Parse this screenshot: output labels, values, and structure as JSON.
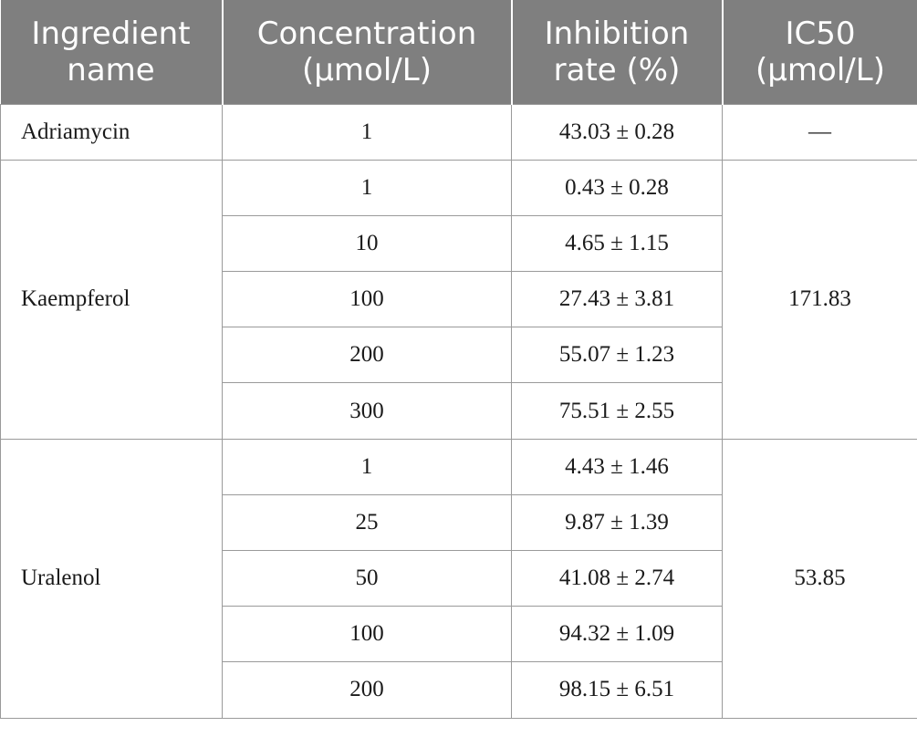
{
  "header": {
    "col1": [
      "Ingredient",
      "name"
    ],
    "col2": [
      "Concentration",
      "(μmol/L)"
    ],
    "col3": [
      "Inhibition",
      "rate (%)"
    ],
    "col4": [
      "IC50",
      "(μmol/L)"
    ]
  },
  "groups": [
    {
      "name": "Adriamycin",
      "ic50": "—",
      "rows": [
        {
          "concentration": "1",
          "inhibition": "43.03 ± 0.28"
        }
      ]
    },
    {
      "name": "Kaempferol",
      "ic50": "171.83",
      "rows": [
        {
          "concentration": "1",
          "inhibition": "0.43 ± 0.28"
        },
        {
          "concentration": "10",
          "inhibition": "4.65 ± 1.15"
        },
        {
          "concentration": "100",
          "inhibition": "27.43 ± 3.81"
        },
        {
          "concentration": "200",
          "inhibition": "55.07 ± 1.23"
        },
        {
          "concentration": "300",
          "inhibition": "75.51 ± 2.55"
        }
      ]
    },
    {
      "name": "Uralenol",
      "ic50": "53.85",
      "rows": [
        {
          "concentration": "1",
          "inhibition": "4.43 ± 1.46"
        },
        {
          "concentration": "25",
          "inhibition": "9.87 ± 1.39"
        },
        {
          "concentration": "50",
          "inhibition": "41.08 ± 2.74"
        },
        {
          "concentration": "100",
          "inhibition": "94.32 ± 1.09"
        },
        {
          "concentration": "200",
          "inhibition": "98.15 ± 6.51"
        }
      ]
    }
  ]
}
